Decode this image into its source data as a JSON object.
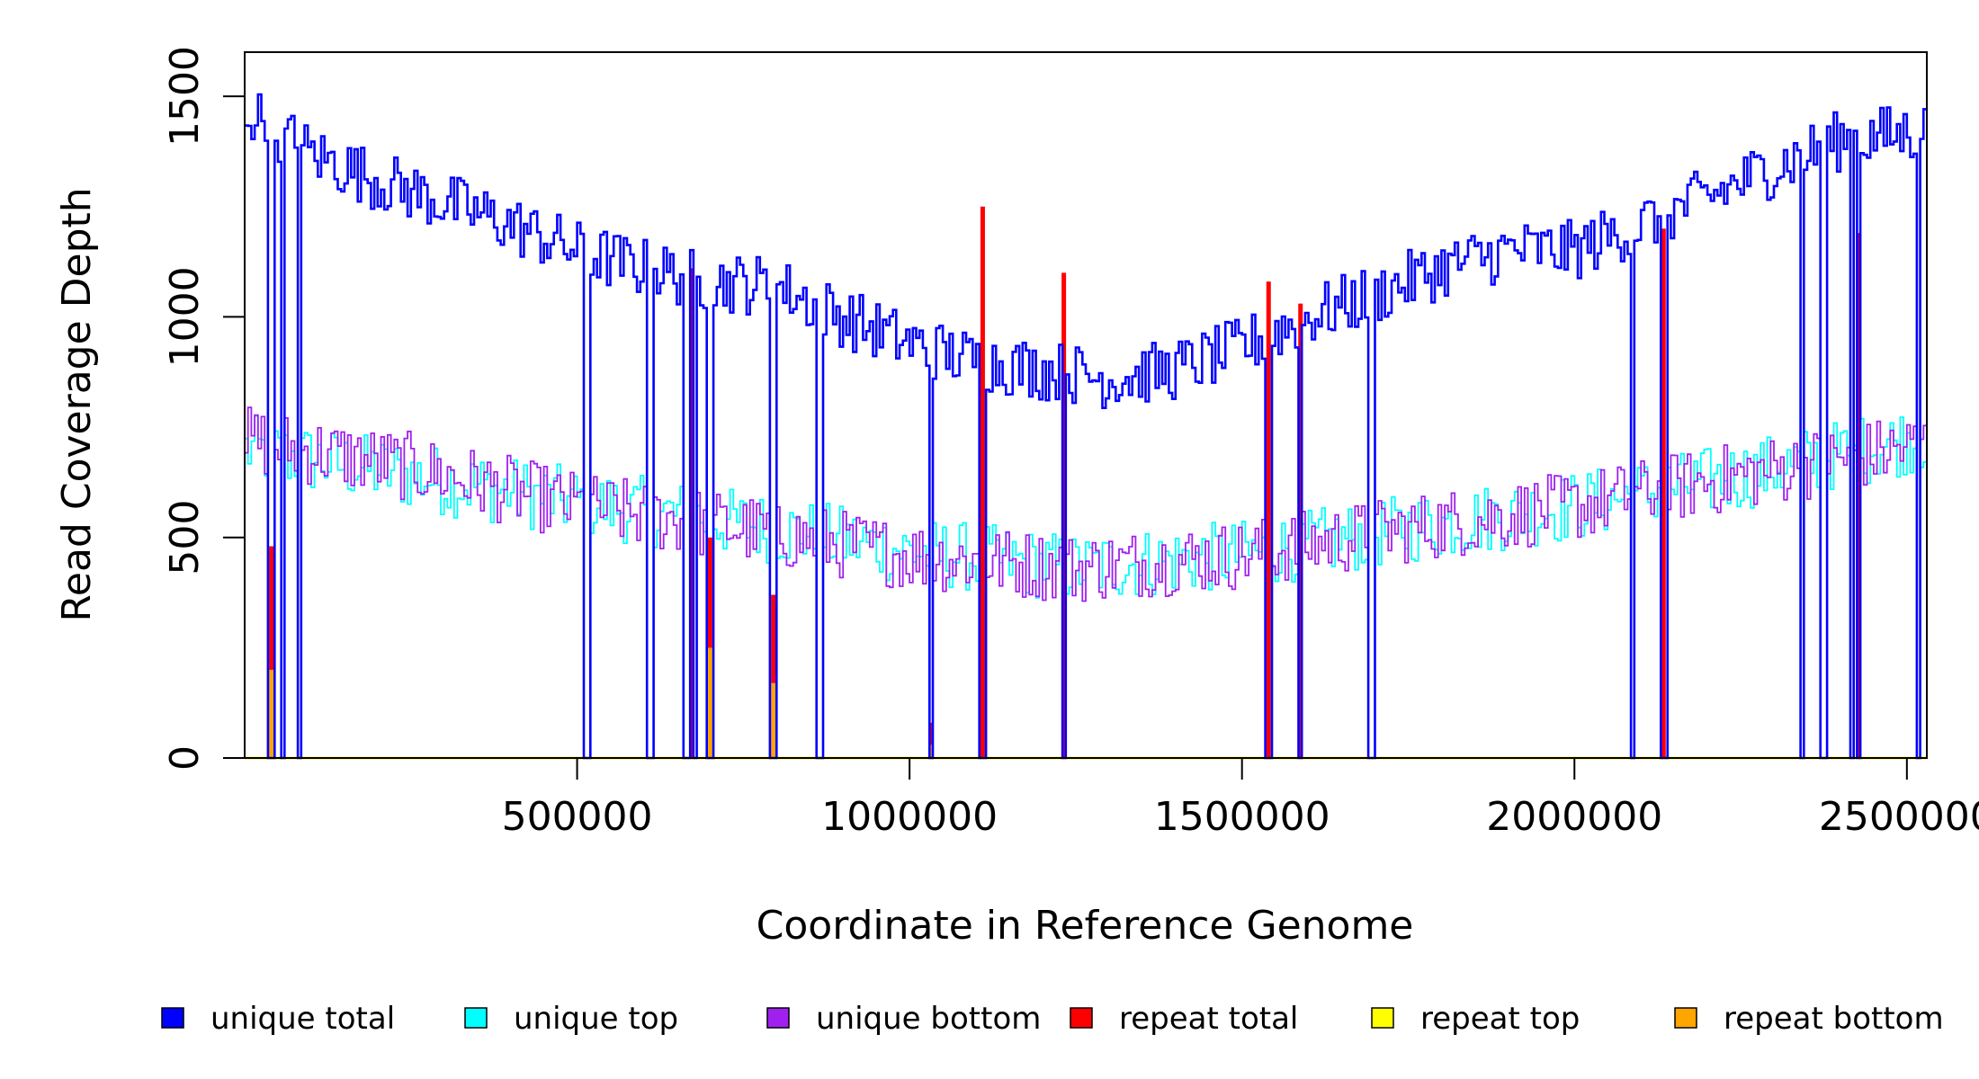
{
  "chart_data": {
    "type": "line",
    "title": "",
    "xlabel": "Coordinate in Reference Genome",
    "ylabel": "Read Coverage Depth",
    "xlim": [
      0,
      2530000
    ],
    "ylim": [
      0,
      1600
    ],
    "x_ticks": [
      500000,
      1000000,
      1500000,
      2000000,
      2500000
    ],
    "x_tick_labels": [
      "500000",
      "1000000",
      "1500000",
      "2000000",
      "2500000"
    ],
    "y_ticks": [
      0,
      500,
      1000,
      1500
    ],
    "y_tick_labels": [
      "0",
      "500",
      "1000",
      "1500"
    ],
    "legend_position": "bottom",
    "series": [
      {
        "key": "unique_total",
        "name": "unique total",
        "color": "#0000ff",
        "x": [
          0,
          100000,
          200000,
          300000,
          400000,
          500000,
          600000,
          700000,
          800000,
          900000,
          1000000,
          1100000,
          1200000,
          1300000,
          1400000,
          1500000,
          1600000,
          1700000,
          1800000,
          1900000,
          2000000,
          2100000,
          2200000,
          2300000,
          2400000,
          2530000
        ],
        "values": [
          1470,
          1370,
          1310,
          1260,
          1210,
          1150,
          1110,
          1080,
          1070,
          1000,
          940,
          900,
          880,
          860,
          880,
          930,
          1000,
          1050,
          1110,
          1150,
          1150,
          1210,
          1270,
          1340,
          1400,
          1420
        ]
      },
      {
        "key": "unique_top",
        "name": "unique top",
        "color": "#00ffff",
        "x": [
          0,
          250000,
          500000,
          750000,
          1000000,
          1250000,
          1500000,
          1750000,
          2000000,
          2250000,
          2530000
        ],
        "values": [
          700,
          640,
          580,
          530,
          470,
          430,
          460,
          520,
          570,
          640,
          730
        ]
      },
      {
        "key": "unique_bottom",
        "name": "unique bottom",
        "color": "#a020f0",
        "x": [
          0,
          250000,
          500000,
          750000,
          1000000,
          1250000,
          1500000,
          1750000,
          2000000,
          2250000,
          2530000
        ],
        "values": [
          720,
          660,
          570,
          520,
          460,
          430,
          460,
          520,
          570,
          640,
          710
        ]
      },
      {
        "key": "repeat_total",
        "name": "repeat total",
        "color": "#ff0000",
        "x": [
          0,
          2530000
        ],
        "values": [
          0,
          0
        ]
      },
      {
        "key": "repeat_top",
        "name": "repeat top",
        "color": "#ffff00",
        "x": [
          0,
          2530000
        ],
        "values": [
          0,
          0
        ]
      },
      {
        "key": "repeat_bottom",
        "name": "repeat bottom",
        "color": "#ffa500",
        "x": [
          0,
          2530000
        ],
        "values": [
          0,
          0
        ]
      }
    ],
    "dips": [
      40000,
      58000,
      83000,
      515000,
      610000,
      665000,
      678000,
      700000,
      795000,
      866000,
      1032000,
      1110000,
      1232000,
      1540000,
      1588000,
      1694000,
      2088000,
      2134000,
      2342000,
      2376000,
      2418000,
      2428000,
      2517000
    ],
    "repeat_spikes": [
      {
        "x": 40000,
        "total": 480,
        "bottom": 200
      },
      {
        "x": 672000,
        "total": 1110,
        "bottom": 0
      },
      {
        "x": 700000,
        "total": 500,
        "bottom": 250
      },
      {
        "x": 795000,
        "total": 370,
        "bottom": 170
      },
      {
        "x": 1032000,
        "total": 80,
        "bottom": 30
      },
      {
        "x": 1110000,
        "total": 1250,
        "bottom": 0
      },
      {
        "x": 1232000,
        "total": 1100,
        "bottom": 0
      },
      {
        "x": 1540000,
        "total": 1080,
        "bottom": 0
      },
      {
        "x": 1588000,
        "total": 1030,
        "bottom": 0
      },
      {
        "x": 2134000,
        "total": 1200,
        "bottom": 0
      },
      {
        "x": 2428000,
        "total": 1190,
        "bottom": 0
      }
    ]
  }
}
